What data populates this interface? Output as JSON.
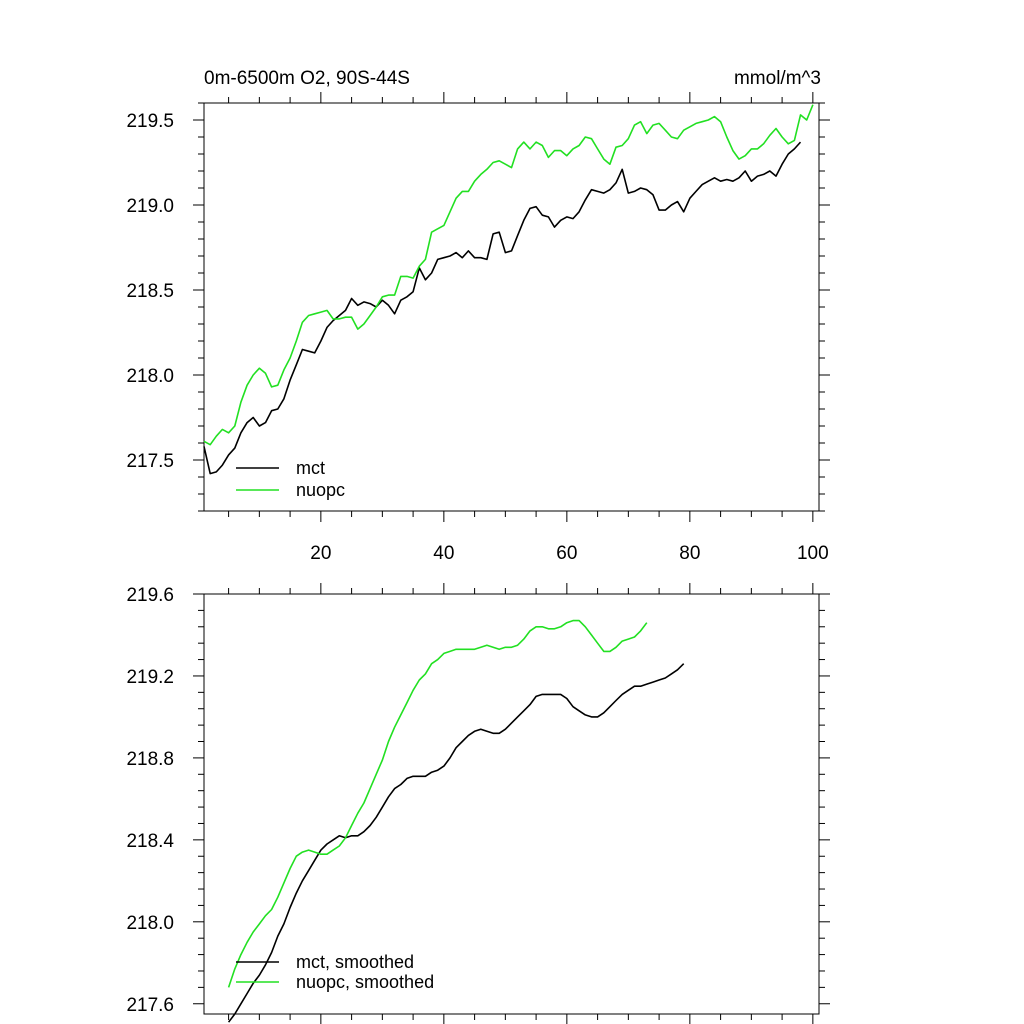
{
  "chart_data": [
    {
      "type": "line",
      "title": "0m-6500m O2, 90S-44S",
      "units": "mmol/m^3",
      "xlim": [
        1,
        101
      ],
      "ylim": [
        217.2,
        219.6
      ],
      "xticks": [
        20,
        40,
        60,
        80,
        100
      ],
      "xtick_labels": [
        "20",
        "40",
        "60",
        "80",
        "100"
      ],
      "yticks": [
        217.5,
        218.0,
        218.5,
        219.0,
        219.5
      ],
      "ytick_labels": [
        "217.5",
        "218.0",
        "218.5",
        "219.0",
        "219.5"
      ],
      "legend_position": "bottom-left",
      "series": [
        {
          "name": "mct",
          "color": "#000000",
          "x_start": 1,
          "values": [
            217.58,
            217.42,
            217.43,
            217.47,
            217.53,
            217.57,
            217.66,
            217.72,
            217.75,
            217.7,
            217.72,
            217.79,
            217.8,
            217.86,
            217.97,
            218.06,
            218.15,
            218.14,
            218.13,
            218.2,
            218.28,
            218.32,
            218.35,
            218.38,
            218.45,
            218.41,
            218.43,
            218.42,
            218.4,
            218.44,
            218.41,
            218.36,
            218.44,
            218.46,
            218.49,
            218.63,
            218.56,
            218.6,
            218.68,
            218.69,
            218.7,
            218.72,
            218.69,
            218.73,
            218.69,
            218.69,
            218.68,
            218.83,
            218.84,
            218.72,
            218.73,
            218.82,
            218.91,
            218.98,
            218.99,
            218.94,
            218.93,
            218.87,
            218.91,
            218.93,
            218.92,
            218.96,
            219.03,
            219.09,
            219.08,
            219.07,
            219.09,
            219.13,
            219.21,
            219.07,
            219.08,
            219.1,
            219.09,
            219.06,
            218.97,
            218.97,
            219.0,
            219.02,
            218.96,
            219.04,
            219.08,
            219.12,
            219.14,
            219.16,
            219.14,
            219.15,
            219.14,
            219.16,
            219.2,
            219.14,
            219.17,
            219.18,
            219.2,
            219.17,
            219.24,
            219.3,
            219.33,
            219.37
          ]
        },
        {
          "name": "nuopc",
          "color": "#22e022",
          "x_start": 1,
          "values": [
            217.61,
            217.59,
            217.64,
            217.68,
            217.66,
            217.7,
            217.84,
            217.94,
            218.0,
            218.04,
            218.01,
            217.93,
            217.94,
            218.03,
            218.1,
            218.2,
            218.31,
            218.35,
            218.36,
            218.37,
            218.38,
            218.33,
            218.33,
            218.34,
            218.34,
            218.27,
            218.3,
            218.35,
            218.4,
            218.46,
            218.47,
            218.47,
            218.58,
            218.58,
            218.57,
            218.64,
            218.68,
            218.84,
            218.86,
            218.88,
            218.96,
            219.04,
            219.08,
            219.08,
            219.14,
            219.18,
            219.21,
            219.25,
            219.26,
            219.24,
            219.22,
            219.33,
            219.37,
            219.33,
            219.37,
            219.35,
            219.28,
            219.32,
            219.32,
            219.29,
            219.33,
            219.35,
            219.4,
            219.39,
            219.33,
            219.27,
            219.24,
            219.34,
            219.35,
            219.39,
            219.47,
            219.49,
            219.42,
            219.47,
            219.48,
            219.44,
            219.4,
            219.39,
            219.44,
            219.46,
            219.48,
            219.49,
            219.5,
            219.52,
            219.49,
            219.4,
            219.32,
            219.27,
            219.29,
            219.33,
            219.33,
            219.36,
            219.41,
            219.45,
            219.4,
            219.36,
            219.38,
            219.53,
            219.5,
            219.59
          ]
        }
      ]
    },
    {
      "type": "line",
      "title": "",
      "xlim": [
        1,
        101
      ],
      "ylim": [
        217.55,
        219.6
      ],
      "xticks": [
        20,
        40,
        60,
        80,
        100
      ],
      "yticks": [
        217.6,
        218.0,
        218.4,
        218.8,
        219.2,
        219.6
      ],
      "ytick_labels": [
        "217.6",
        "218.0",
        "218.4",
        "218.8",
        "219.2",
        "219.6"
      ],
      "legend_position": "bottom-left",
      "series": [
        {
          "name": "mct, smoothed",
          "color": "#000000",
          "x_start": 5,
          "values": [
            217.51,
            217.55,
            217.6,
            217.65,
            217.7,
            217.74,
            217.79,
            217.85,
            217.93,
            217.99,
            218.07,
            218.14,
            218.2,
            218.25,
            218.3,
            218.35,
            218.38,
            218.4,
            218.42,
            218.41,
            218.42,
            218.42,
            218.44,
            218.47,
            218.51,
            218.56,
            218.61,
            218.65,
            218.67,
            218.7,
            218.71,
            218.71,
            218.71,
            218.73,
            218.74,
            218.76,
            218.8,
            218.85,
            218.88,
            218.91,
            218.93,
            218.94,
            218.93,
            218.92,
            218.92,
            218.94,
            218.97,
            219.0,
            219.03,
            219.06,
            219.1,
            219.11,
            219.11,
            219.11,
            219.11,
            219.09,
            219.05,
            219.03,
            219.01,
            219.0,
            219.0,
            219.02,
            219.05,
            219.08,
            219.11,
            219.13,
            219.15,
            219.15,
            219.16,
            219.17,
            219.18,
            219.19,
            219.21,
            219.23,
            219.26
          ]
        },
        {
          "name": "nuopc, smoothed",
          "color": "#22e022",
          "x_start": 5,
          "values": [
            217.68,
            217.77,
            217.84,
            217.9,
            217.95,
            217.99,
            218.03,
            218.06,
            218.12,
            218.19,
            218.26,
            218.32,
            218.34,
            218.35,
            218.34,
            218.33,
            218.33,
            218.35,
            218.37,
            218.41,
            218.47,
            218.53,
            218.58,
            218.65,
            218.72,
            218.79,
            218.88,
            218.95,
            219.01,
            219.07,
            219.13,
            219.18,
            219.21,
            219.26,
            219.28,
            219.31,
            219.32,
            219.33,
            219.33,
            219.33,
            219.33,
            219.34,
            219.35,
            219.34,
            219.33,
            219.34,
            219.34,
            219.35,
            219.38,
            219.42,
            219.44,
            219.44,
            219.43,
            219.43,
            219.44,
            219.46,
            219.47,
            219.47,
            219.44,
            219.4,
            219.36,
            219.32,
            219.32,
            219.34,
            219.37,
            219.38,
            219.39,
            219.42,
            219.46
          ]
        }
      ]
    }
  ]
}
